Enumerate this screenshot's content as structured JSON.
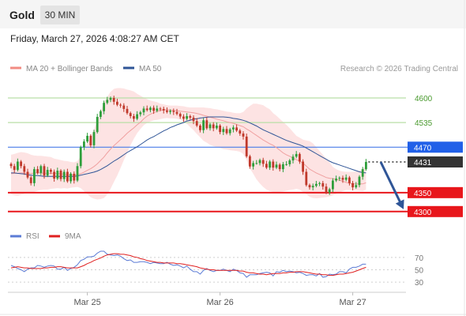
{
  "header": {
    "symbol": "Gold",
    "timeframe": "30 MIN",
    "timestamp": "Friday, March 27, 2026 4:08:27 AM CET"
  },
  "legend": {
    "ma20_label": "MA 20 + Bollinger Bands",
    "ma50_label": "MA 50",
    "ma20_color": "#f28b82",
    "ma50_color": "#2f5597",
    "copyright": "Research © 2026 Trading Central"
  },
  "rsi_legend": {
    "rsi_label": "RSI",
    "ma9_label": "9MA",
    "rsi_color": "#5b7bd5",
    "ma9_color": "#e02020"
  },
  "colors": {
    "bull": "#2e9e3a",
    "bear": "#c0392b",
    "resistance": "#b9dfa7",
    "pivot": "#4a7de8",
    "support": "#e8161b",
    "last_price": "#333333",
    "arrow": "#2f5597",
    "band_fill": "#fde3e3"
  },
  "chart_data": [
    {
      "type": "candlestick",
      "title": "",
      "x_ticks": [
        "Mar 25",
        "Mar 26",
        "Mar 27"
      ],
      "ylim": [
        4285,
        4625
      ],
      "levels": [
        {
          "label": "4600",
          "value": 4600,
          "kind": "resistance"
        },
        {
          "label": "4535",
          "value": 4535,
          "kind": "resistance"
        },
        {
          "label": "4470",
          "value": 4470,
          "kind": "pivot"
        },
        {
          "label": "4431",
          "value": 4431,
          "kind": "last"
        },
        {
          "label": "4350",
          "value": 4350,
          "kind": "support"
        },
        {
          "label": "4300",
          "value": 4300,
          "kind": "support"
        }
      ],
      "projection": {
        "from": 4431,
        "to": 4306
      },
      "close": [
        4420,
        4410,
        4432,
        4420,
        4405,
        4390,
        4375,
        4412,
        4402,
        4420,
        4395,
        4410,
        4405,
        4387,
        4408,
        4386,
        4405,
        4380,
        4400,
        4382,
        4420,
        4470,
        4485,
        4500,
        4475,
        4510,
        4550,
        4565,
        4587,
        4595,
        4600,
        4590,
        4582,
        4580,
        4571,
        4560,
        4552,
        4545,
        4557,
        4562,
        4572,
        4568,
        4574,
        4566,
        4572,
        4571,
        4567,
        4563,
        4566,
        4563,
        4558,
        4551,
        4545,
        4552,
        4548,
        4539,
        4527,
        4515,
        4541,
        4520,
        4530,
        4520,
        4527,
        4510,
        4518,
        4507,
        4517,
        4522,
        4514,
        4506,
        4498,
        4446,
        4419,
        4428,
        4428,
        4436,
        4426,
        4416,
        4432,
        4416,
        4424,
        4412,
        4425,
        4425,
        4435,
        4445,
        4452,
        4432,
        4405,
        4370,
        4364,
        4368,
        4373,
        4375,
        4366,
        4350,
        4359,
        4382,
        4387,
        4389,
        4384,
        4390,
        4375,
        4364,
        4370,
        4392,
        4412,
        4431
      ],
      "ma20": [
        4400,
        4401,
        4401,
        4402,
        4402,
        4401,
        4400,
        4402,
        4402,
        4402,
        4401,
        4401,
        4401,
        4401,
        4401,
        4399,
        4399,
        4397,
        4397,
        4396,
        4397,
        4400,
        4404,
        4409,
        4413,
        4419,
        4426,
        4435,
        4444,
        4455,
        4465,
        4474,
        4482,
        4490,
        4498,
        4507,
        4514,
        4521,
        4529,
        4536,
        4545,
        4552,
        4557,
        4561,
        4564,
        4567,
        4568,
        4569,
        4568,
        4567,
        4566,
        4565,
        4564,
        4563,
        4562,
        4561,
        4559,
        4557,
        4554,
        4552,
        4549,
        4547,
        4544,
        4542,
        4540,
        4537,
        4535,
        4533,
        4530,
        4527,
        4524,
        4518,
        4513,
        4507,
        4501,
        4495,
        4489,
        4484,
        4479,
        4475,
        4469,
        4462,
        4455,
        4450,
        4446,
        4441,
        4437,
        4433,
        4428,
        4420,
        4412,
        4407,
        4402,
        4398,
        4394,
        4390,
        4388,
        4387,
        4385,
        4383,
        4380,
        4377,
        4375,
        4373,
        4373,
        4373,
        4373,
        4376
      ],
      "bb_upper": [
        4450,
        4452,
        4455,
        4457,
        4456,
        4454,
        4450,
        4448,
        4447,
        4447,
        4446,
        4445,
        4444,
        4440,
        4438,
        4436,
        4434,
        4433,
        4431,
        4430,
        4433,
        4446,
        4466,
        4482,
        4499,
        4516,
        4541,
        4564,
        4588,
        4603,
        4616,
        4624,
        4626,
        4626,
        4625,
        4622,
        4620,
        4617,
        4611,
        4606,
        4601,
        4597,
        4593,
        4591,
        4589,
        4585,
        4583,
        4581,
        4580,
        4580,
        4580,
        4579,
        4578,
        4576,
        4575,
        4575,
        4575,
        4575,
        4575,
        4574,
        4573,
        4571,
        4570,
        4568,
        4566,
        4564,
        4563,
        4561,
        4560,
        4560,
        4563,
        4572,
        4579,
        4585,
        4585,
        4583,
        4581,
        4575,
        4570,
        4560,
        4553,
        4545,
        4537,
        4529,
        4520,
        4510,
        4500,
        4495,
        4490,
        4488,
        4486,
        4480,
        4470,
        4460,
        4450,
        4440,
        4430,
        4418,
        4412,
        4408,
        4406,
        4405,
        4405,
        4405,
        4406,
        4408,
        4412,
        4420
      ],
      "bb_lower": [
        4345,
        4343,
        4342,
        4344,
        4347,
        4349,
        4350,
        4352,
        4355,
        4357,
        4358,
        4358,
        4360,
        4361,
        4362,
        4361,
        4362,
        4361,
        4363,
        4364,
        4365,
        4362,
        4354,
        4346,
        4338,
        4334,
        4332,
        4333,
        4336,
        4345,
        4360,
        4378,
        4395,
        4415,
        4436,
        4455,
        4475,
        4492,
        4507,
        4518,
        4528,
        4534,
        4538,
        4541,
        4542,
        4544,
        4546,
        4547,
        4546,
        4546,
        4545,
        4543,
        4538,
        4532,
        4523,
        4515,
        4505,
        4496,
        4487,
        4482,
        4476,
        4473,
        4470,
        4468,
        4465,
        4464,
        4462,
        4461,
        4460,
        4458,
        4452,
        4436,
        4414,
        4400,
        4385,
        4374,
        4365,
        4358,
        4354,
        4352,
        4352,
        4352,
        4353,
        4355,
        4357,
        4358,
        4360,
        4358,
        4352,
        4346,
        4339,
        4336,
        4335,
        4336,
        4337,
        4338,
        4340,
        4343,
        4347,
        4350,
        4354,
        4357,
        4357,
        4356,
        4356,
        4355,
        4354,
        4358
      ],
      "ma50": [
        4402,
        4402,
        4401,
        4400,
        4399,
        4397,
        4396,
        4395,
        4395,
        4394,
        4393,
        4393,
        4393,
        4393,
        4393,
        4393,
        4393,
        4393,
        4393,
        4393,
        4394,
        4396,
        4398,
        4400,
        4402,
        4404,
        4407,
        4411,
        4416,
        4421,
        4427,
        4433,
        4438,
        4444,
        4450,
        4456,
        4461,
        4466,
        4471,
        4477,
        4483,
        4489,
        4494,
        4498,
        4503,
        4508,
        4513,
        4517,
        4522,
        4525,
        4529,
        4532,
        4535,
        4539,
        4541,
        4544,
        4545,
        4547,
        4548,
        4549,
        4550,
        4550,
        4550,
        4550,
        4550,
        4549,
        4548,
        4546,
        4545,
        4543,
        4541,
        4538,
        4534,
        4530,
        4526,
        4521,
        4516,
        4512,
        4508,
        4504,
        4500,
        4496,
        4492,
        4488,
        4485,
        4482,
        4479,
        4476,
        4473,
        4468,
        4463,
        4458,
        4453,
        4448,
        4443,
        4438,
        4433,
        4429,
        4426,
        4423,
        4420,
        4417,
        4414,
        4411,
        4408,
        4405,
        4403,
        4402
      ]
    },
    {
      "type": "line",
      "title": "RSI",
      "ylim": [
        20,
        80
      ],
      "y_ticks": [
        "70",
        "50",
        "30"
      ],
      "series": [
        {
          "name": "RSI",
          "values": [
            57,
            55,
            52,
            50,
            47,
            51,
            53,
            53,
            57,
            56,
            54,
            56,
            57,
            56,
            51,
            51,
            54,
            49,
            52,
            54,
            58,
            65,
            67,
            71,
            71,
            72,
            77,
            80,
            80,
            75,
            74,
            73,
            74,
            72,
            68,
            65,
            66,
            62,
            62,
            63,
            63,
            62,
            60,
            62,
            61,
            60,
            60,
            62,
            59,
            57,
            58,
            56,
            53,
            56,
            51,
            47,
            47,
            43,
            49,
            52,
            49,
            47,
            49,
            49,
            51,
            49,
            47,
            51,
            49,
            45,
            44,
            38,
            42,
            42,
            42,
            44,
            45,
            46,
            45,
            40,
            47,
            46,
            49,
            47,
            48,
            47,
            45,
            46,
            44,
            41,
            42,
            42,
            40,
            44,
            38,
            39,
            43,
            42,
            43,
            47,
            47,
            45,
            51,
            54,
            54,
            56,
            59,
            59
          ]
        },
        {
          "name": "9MA",
          "values": [
            53,
            54,
            55,
            54,
            53,
            53,
            52,
            52,
            52,
            52,
            53,
            53,
            54,
            54,
            55,
            55,
            54,
            53,
            53,
            53,
            53,
            55,
            57,
            60,
            62,
            65,
            67,
            69,
            72,
            74,
            75,
            76,
            76,
            75,
            75,
            74,
            73,
            71,
            70,
            68,
            67,
            65,
            64,
            63,
            62,
            62,
            61,
            61,
            61,
            61,
            60,
            60,
            59,
            58,
            57,
            56,
            55,
            53,
            52,
            51,
            50,
            50,
            49,
            49,
            49,
            49,
            49,
            49,
            49,
            48,
            48,
            46,
            45,
            45,
            44,
            43,
            43,
            42,
            43,
            44,
            44,
            44,
            45,
            45,
            46,
            46,
            47,
            47,
            47,
            46,
            45,
            44,
            43,
            43,
            42,
            42,
            41,
            41,
            42,
            43,
            43,
            44,
            45,
            46,
            48,
            50,
            52,
            54
          ]
        }
      ]
    }
  ]
}
